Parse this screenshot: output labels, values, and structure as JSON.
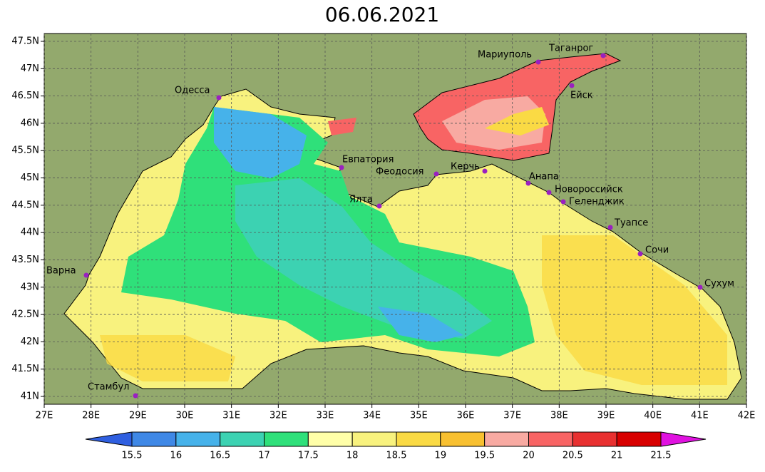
{
  "title": "06.06.2021",
  "map": {
    "xlim": [
      27,
      42
    ],
    "ylim": [
      41,
      47.5
    ],
    "xticks": [
      {
        "value": 27,
        "label": "27E"
      },
      {
        "value": 28,
        "label": "28E"
      },
      {
        "value": 29,
        "label": "29E"
      },
      {
        "value": 30,
        "label": "30E"
      },
      {
        "value": 31,
        "label": "31E"
      },
      {
        "value": 32,
        "label": "32E"
      },
      {
        "value": 33,
        "label": "33E"
      },
      {
        "value": 34,
        "label": "34E"
      },
      {
        "value": 35,
        "label": "35E"
      },
      {
        "value": 36,
        "label": "36E"
      },
      {
        "value": 37,
        "label": "37E"
      },
      {
        "value": 38,
        "label": "38E"
      },
      {
        "value": 39,
        "label": "39E"
      },
      {
        "value": 40,
        "label": "40E"
      },
      {
        "value": 41,
        "label": "41E"
      },
      {
        "value": 42,
        "label": "42E"
      }
    ],
    "yticks": [
      {
        "value": 41,
        "label": "41N"
      },
      {
        "value": 41.5,
        "label": "41.5N"
      },
      {
        "value": 42,
        "label": "42N"
      },
      {
        "value": 42.5,
        "label": "42.5N"
      },
      {
        "value": 43,
        "label": "43N"
      },
      {
        "value": 43.5,
        "label": "43.5N"
      },
      {
        "value": 44,
        "label": "44N"
      },
      {
        "value": 44.5,
        "label": "44.5N"
      },
      {
        "value": 45,
        "label": "45N"
      },
      {
        "value": 45.5,
        "label": "45.5N"
      },
      {
        "value": 46,
        "label": "46N"
      },
      {
        "value": 46.5,
        "label": "46.5N"
      },
      {
        "value": 47,
        "label": "47N"
      },
      {
        "value": 47.5,
        "label": "47.5N"
      }
    ],
    "grid": true,
    "cities": [
      "Одесса",
      "Мариуполь",
      "Таганрог",
      "Ейск",
      "Евпатория",
      "Феодосия",
      "Керчь",
      "Ялта",
      "Анапа",
      "Новороссийск",
      "Геленджик",
      "Туапсе",
      "Сочи",
      "Сухум",
      "Варна",
      "Стамбул"
    ]
  },
  "colorbar": {
    "levels": [
      15.5,
      16,
      16.5,
      17,
      17.5,
      18,
      18.5,
      19,
      19.5,
      20,
      20.5,
      21,
      21.5
    ],
    "colors": [
      "#2f5fe0",
      "#3f88e6",
      "#46b2ea",
      "#3cd2b2",
      "#2fe07a",
      "#ffffa8",
      "#f8f27e",
      "#fada44",
      "#f8c030",
      "#f8aaa2",
      "#f86464",
      "#e83030",
      "#d80000",
      "#e012e0"
    ]
  }
}
